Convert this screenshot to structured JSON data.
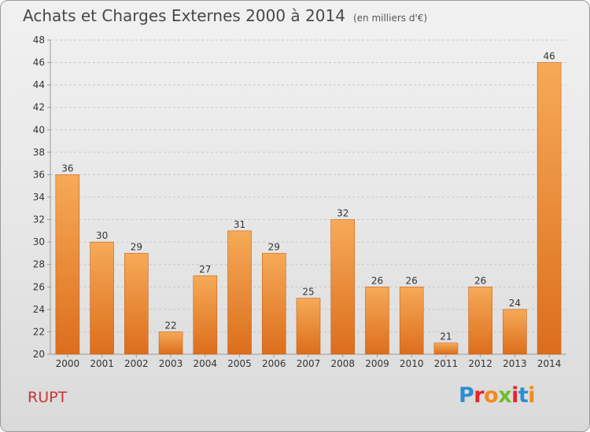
{
  "header": {
    "title": "Achats et Charges Externes 2000 à 2014",
    "subtitle": "(en milliers d'€)"
  },
  "footer": {
    "place": "RUPT",
    "logo": {
      "text": "Proxiti",
      "letter_colors": [
        "#2a8fd0",
        "#e4252b",
        "#f08a1c",
        "#6fbf2d",
        "#e4252b",
        "#2a8fd0",
        "#f08a1c"
      ]
    }
  },
  "colors": {
    "bar_light": "#f6aa58",
    "bar_dark": "#dc6e1c",
    "bar_edge": "#c9631b",
    "axis": "#9a9a9a",
    "grid": "#c8c8c8",
    "text": "#333333",
    "place": "#cc3333"
  },
  "chart_data": {
    "type": "bar",
    "title": "Achats et Charges Externes 2000 à 2014",
    "subtitle": "(en milliers d'€)",
    "xlabel": "",
    "ylabel": "",
    "categories": [
      "2000",
      "2001",
      "2002",
      "2003",
      "2004",
      "2005",
      "2006",
      "2007",
      "2008",
      "2009",
      "2010",
      "2011",
      "2012",
      "2013",
      "2014"
    ],
    "values": [
      36,
      30,
      29,
      22,
      27,
      31,
      29,
      25,
      32,
      26,
      26,
      21,
      26,
      24,
      46
    ],
    "ylim": [
      20,
      48
    ],
    "yticks": [
      "20",
      "22",
      "24",
      "26",
      "28",
      "30",
      "32",
      "34",
      "36",
      "38",
      "40",
      "42",
      "44",
      "46",
      "48"
    ],
    "grid": "horizontal dashed",
    "data_labels": true,
    "legend": "none"
  }
}
